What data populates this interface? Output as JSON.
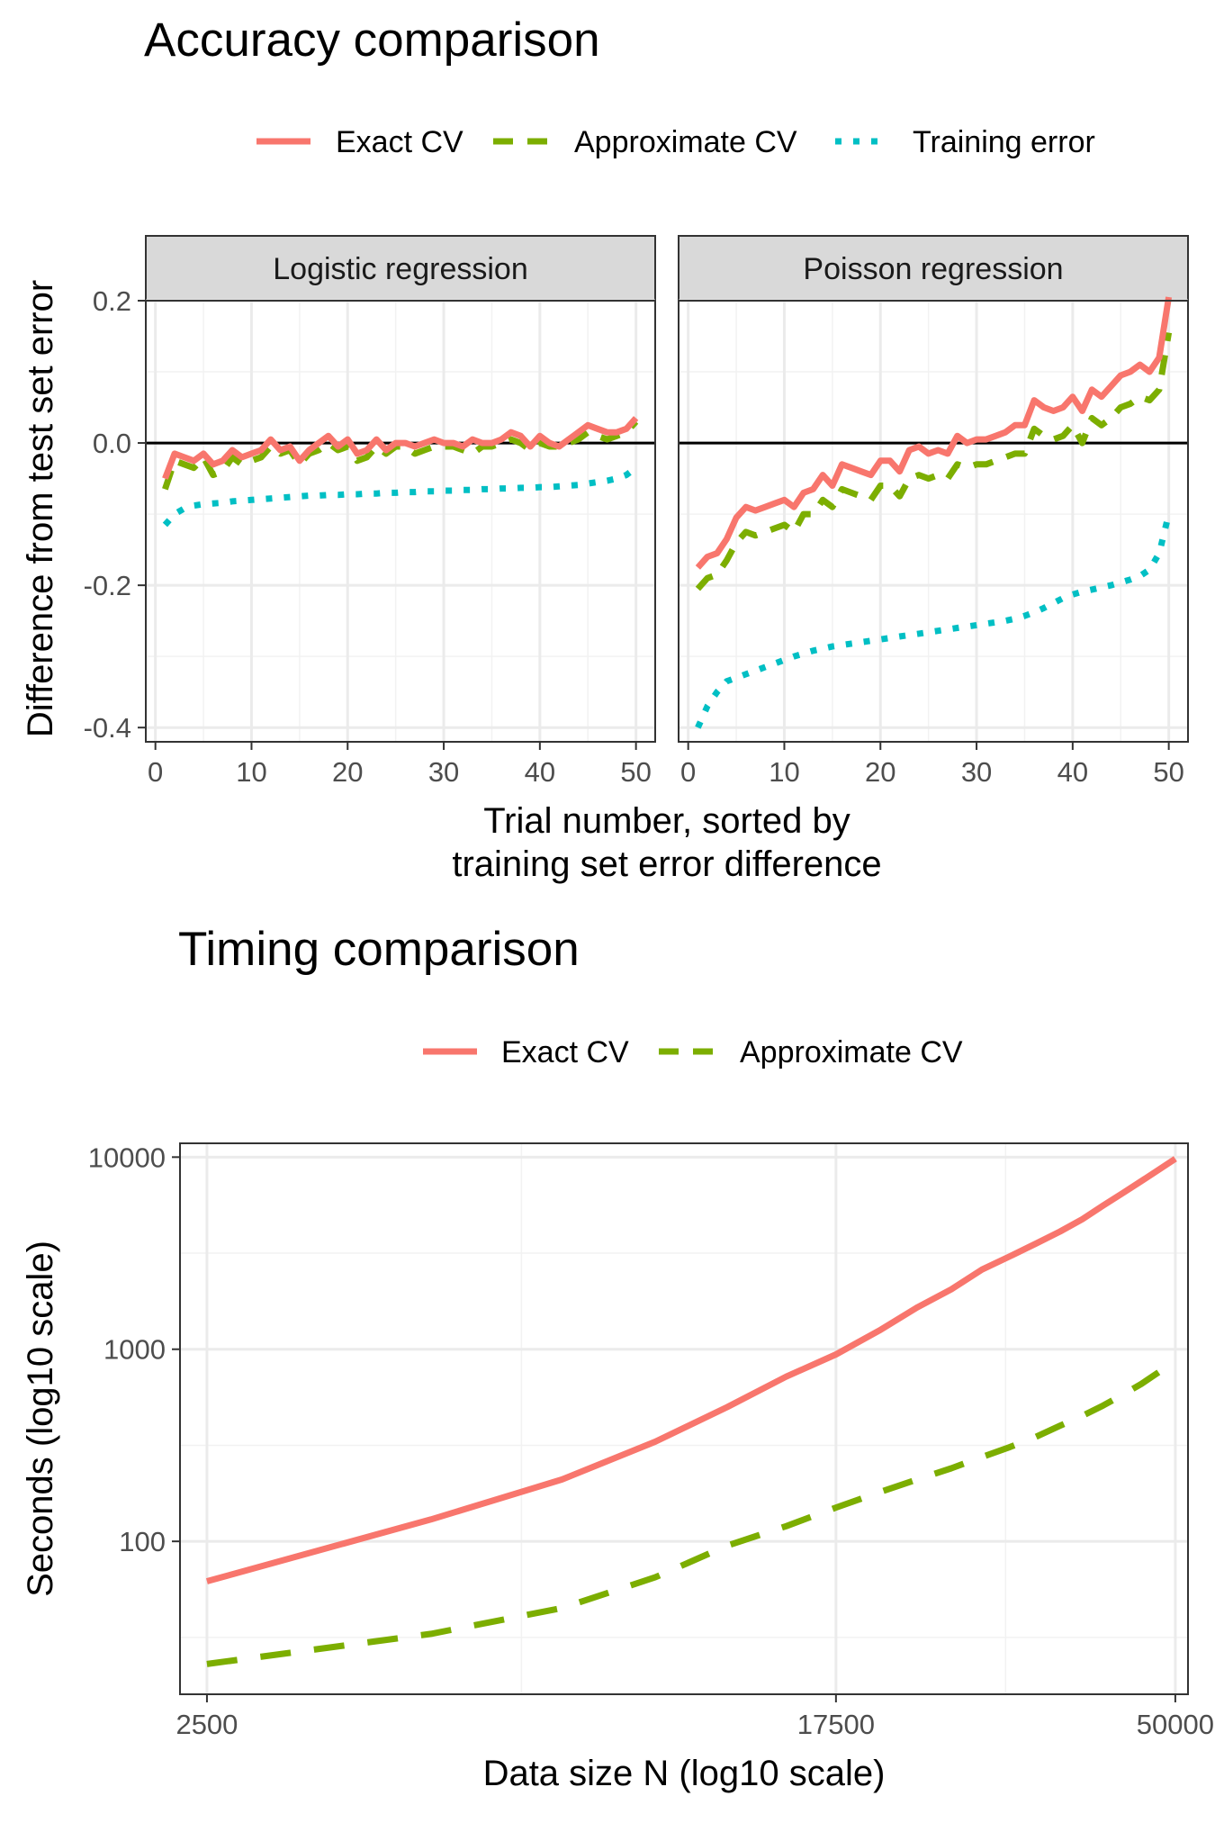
{
  "chart_data": [
    {
      "type": "line",
      "title": "Accuracy comparison",
      "xlabel": [
        "Trial number, sorted by",
        "training set error difference"
      ],
      "ylabel": "Difference from test set error",
      "xlim": [
        -1,
        52
      ],
      "ylim": [
        -0.42,
        0.2
      ],
      "x_ticks": [
        0,
        10,
        20,
        30,
        40,
        50
      ],
      "y_ticks": [
        0.2,
        0.0,
        -0.2,
        -0.4
      ],
      "y_tick_labels": [
        "0.2",
        "0.0",
        "-0.2",
        "-0.4"
      ],
      "hline": 0,
      "grid": true,
      "legend_position": "top",
      "legend": [
        {
          "name": "Exact CV",
          "color": "#F8766D",
          "dash": "solid"
        },
        {
          "name": "Approximate CV",
          "color": "#7CAE00",
          "dash": "dashed"
        },
        {
          "name": "Training error",
          "color": "#00BFC4",
          "dash": "dotted"
        }
      ],
      "panels": [
        {
          "strip": "Logistic regression",
          "series": [
            {
              "name": "Exact CV",
              "x_start": 1,
              "values": [
                -0.05,
                -0.015,
                -0.02,
                -0.025,
                -0.015,
                -0.03,
                -0.025,
                -0.01,
                -0.02,
                -0.015,
                -0.01,
                0.005,
                -0.01,
                -0.005,
                -0.025,
                -0.01,
                0.0,
                0.01,
                -0.005,
                0.005,
                -0.015,
                -0.01,
                0.005,
                -0.01,
                0.0,
                0.0,
                -0.005,
                0.0,
                0.005,
                0.0,
                0.0,
                -0.005,
                0.005,
                0.0,
                0.0,
                0.005,
                0.015,
                0.01,
                -0.005,
                0.01,
                0.0,
                -0.005,
                0.005,
                0.015,
                0.025,
                0.02,
                0.015,
                0.015,
                0.02,
                0.035
              ]
            },
            {
              "name": "Approximate CV",
              "x_start": 1,
              "values": [
                -0.065,
                -0.025,
                -0.03,
                -0.035,
                -0.02,
                -0.045,
                -0.04,
                -0.02,
                -0.03,
                -0.025,
                -0.02,
                -0.005,
                -0.015,
                -0.01,
                -0.03,
                -0.015,
                -0.01,
                0.0,
                -0.01,
                -0.005,
                -0.025,
                -0.02,
                -0.005,
                -0.015,
                -0.005,
                -0.005,
                -0.015,
                -0.01,
                -0.005,
                -0.005,
                -0.005,
                -0.01,
                -0.015,
                -0.005,
                -0.005,
                0.0,
                0.005,
                0.0,
                -0.01,
                0.0,
                -0.005,
                -0.005,
                0.0,
                0.005,
                0.015,
                0.01,
                0.005,
                0.01,
                0.015,
                0.03
              ]
            },
            {
              "name": "Training error",
              "x_start": 1,
              "values": [
                -0.115,
                -0.1,
                -0.092,
                -0.088,
                -0.086,
                -0.085,
                -0.084,
                -0.082,
                -0.081,
                -0.08,
                -0.079,
                -0.078,
                -0.077,
                -0.076,
                -0.075,
                -0.074,
                -0.074,
                -0.073,
                -0.073,
                -0.072,
                -0.072,
                -0.071,
                -0.071,
                -0.07,
                -0.07,
                -0.069,
                -0.069,
                -0.068,
                -0.068,
                -0.067,
                -0.067,
                -0.066,
                -0.066,
                -0.065,
                -0.065,
                -0.064,
                -0.064,
                -0.063,
                -0.063,
                -0.062,
                -0.062,
                -0.061,
                -0.06,
                -0.059,
                -0.057,
                -0.055,
                -0.053,
                -0.05,
                -0.045,
                -0.035
              ]
            }
          ]
        },
        {
          "strip": "Poisson regression",
          "series": [
            {
              "name": "Exact CV",
              "x_start": 1,
              "values": [
                -0.175,
                -0.16,
                -0.155,
                -0.135,
                -0.105,
                -0.09,
                -0.095,
                -0.09,
                -0.085,
                -0.08,
                -0.09,
                -0.07,
                -0.065,
                -0.045,
                -0.06,
                -0.03,
                -0.035,
                -0.04,
                -0.045,
                -0.025,
                -0.025,
                -0.04,
                -0.01,
                -0.005,
                -0.015,
                -0.01,
                -0.015,
                0.01,
                0.0,
                0.005,
                0.005,
                0.01,
                0.015,
                0.025,
                0.025,
                0.06,
                0.05,
                0.045,
                0.05,
                0.065,
                0.045,
                0.075,
                0.065,
                0.08,
                0.095,
                0.1,
                0.11,
                0.1,
                0.12,
                0.205
              ]
            },
            {
              "name": "Approximate CV",
              "x_start": 1,
              "values": [
                -0.205,
                -0.19,
                -0.185,
                -0.165,
                -0.14,
                -0.125,
                -0.13,
                -0.125,
                -0.12,
                -0.115,
                -0.125,
                -0.1,
                -0.1,
                -0.08,
                -0.09,
                -0.065,
                -0.07,
                -0.075,
                -0.08,
                -0.06,
                -0.06,
                -0.075,
                -0.05,
                -0.045,
                -0.05,
                -0.045,
                -0.05,
                -0.03,
                -0.035,
                -0.03,
                -0.03,
                -0.025,
                -0.02,
                -0.015,
                -0.015,
                0.02,
                0.01,
                0.005,
                0.01,
                0.025,
                0.0,
                0.035,
                0.025,
                0.035,
                0.05,
                0.055,
                0.065,
                0.06,
                0.075,
                0.155
              ]
            },
            {
              "name": "Training error",
              "x_start": 1,
              "values": [
                -0.4,
                -0.37,
                -0.35,
                -0.335,
                -0.33,
                -0.325,
                -0.32,
                -0.315,
                -0.31,
                -0.305,
                -0.3,
                -0.296,
                -0.292,
                -0.289,
                -0.286,
                -0.284,
                -0.282,
                -0.28,
                -0.278,
                -0.276,
                -0.274,
                -0.272,
                -0.27,
                -0.268,
                -0.266,
                -0.264,
                -0.262,
                -0.26,
                -0.258,
                -0.256,
                -0.254,
                -0.252,
                -0.25,
                -0.247,
                -0.243,
                -0.238,
                -0.232,
                -0.225,
                -0.218,
                -0.213,
                -0.209,
                -0.206,
                -0.203,
                -0.2,
                -0.196,
                -0.192,
                -0.187,
                -0.178,
                -0.155,
                -0.1
              ]
            }
          ]
        }
      ]
    },
    {
      "type": "line",
      "title": "Timing comparison",
      "xlabel": "Data size N (log10 scale)",
      "ylabel": "Seconds (log10 scale)",
      "xscale": "log10",
      "yscale": "log10",
      "xlim": [
        2300,
        52000
      ],
      "ylim": [
        16,
        11800
      ],
      "x_ticks": [
        2500,
        17500,
        50000
      ],
      "y_ticks": [
        100,
        1000,
        10000
      ],
      "grid": true,
      "legend_position": "top",
      "legend": [
        {
          "name": "Exact CV",
          "color": "#F8766D",
          "dash": "solid"
        },
        {
          "name": "Approximate CV",
          "color": "#7CAE00",
          "dash": "dashed"
        }
      ],
      "series": [
        {
          "name": "Exact CV",
          "x": [
            2500,
            5000,
            7500,
            10000,
            12500,
            15000,
            17500,
            20000,
            22500,
            25000,
            27500,
            30000,
            32500,
            35000,
            37500,
            40000,
            42500,
            45000,
            47500,
            50000
          ],
          "values": [
            62,
            130,
            210,
            330,
            500,
            720,
            940,
            1250,
            1650,
            2050,
            2600,
            3050,
            3550,
            4100,
            4750,
            5600,
            6500,
            7500,
            8600,
            9800
          ]
        },
        {
          "name": "Approximate CV",
          "x": [
            2500,
            5000,
            7500,
            10000,
            12500,
            15000,
            17500,
            20000,
            22500,
            25000,
            27500,
            30000,
            32500,
            35000,
            37500,
            40000,
            42500,
            45000,
            47500,
            50000
          ],
          "values": [
            23,
            33,
            45,
            65,
            95,
            120,
            150,
            180,
            210,
            240,
            275,
            310,
            350,
            400,
            450,
            510,
            580,
            660,
            760,
            880
          ]
        }
      ]
    }
  ]
}
